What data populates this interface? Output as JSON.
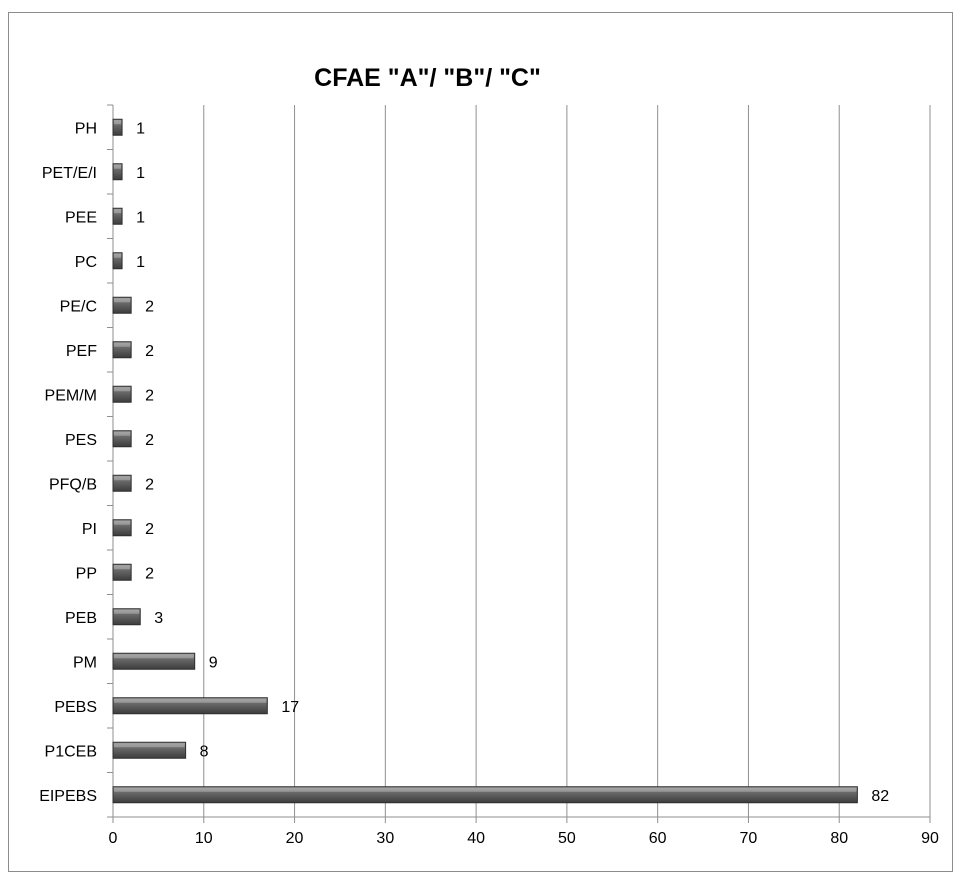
{
  "chart_data": {
    "type": "bar",
    "orientation": "horizontal",
    "title": "CFAE \"A\"/ \"B\"/ \"C\"",
    "xlabel": "",
    "ylabel": "",
    "categories": [
      "EIPEBS",
      "P1CEB",
      "PEBS",
      "PM",
      "PEB",
      "PP",
      "PI",
      "PFQ/B",
      "PES",
      "PEM/M",
      "PEF",
      "PE/C",
      "PC",
      "PEE",
      "PET/E/I",
      "PH"
    ],
    "values": [
      82,
      8,
      17,
      9,
      3,
      2,
      2,
      2,
      2,
      2,
      2,
      2,
      1,
      1,
      1,
      1
    ],
    "xlim": [
      0,
      90
    ],
    "xticks": [
      "0",
      "10",
      "20",
      "30",
      "40",
      "50",
      "60",
      "70",
      "80",
      "90"
    ],
    "grid": "vertical",
    "legend": "none",
    "data_labels": true,
    "bar_color": "#5a5a5a"
  }
}
